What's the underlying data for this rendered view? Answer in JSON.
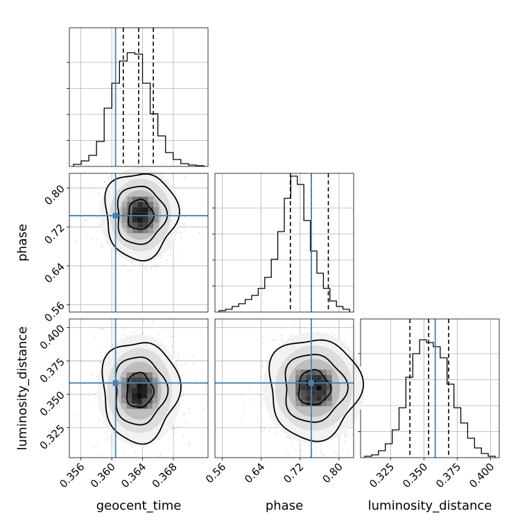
{
  "chart_data": {
    "type": "corner",
    "parameters": [
      {
        "key": "geocent_time",
        "label": "geocent_time",
        "range": [
          0.3545,
          0.3725
        ],
        "ticks": [
          "0.356",
          "0.360",
          "0.364",
          "0.368"
        ],
        "truth": 0.3605,
        "quantiles": [
          0.3615,
          0.3635,
          0.3654
        ],
        "histogram": [
          0.015,
          0.04,
          0.08,
          0.18,
          0.42,
          0.6,
          0.76,
          0.82,
          0.81,
          0.6,
          0.38,
          0.22,
          0.1,
          0.05,
          0.02,
          0.01,
          0.005
        ]
      },
      {
        "key": "phase",
        "label": "phase",
        "range": [
          0.545,
          0.83
        ],
        "ticks": [
          "0.56",
          "0.64",
          "0.72",
          "0.80"
        ],
        "truth": 0.743,
        "quantiles": [
          0.7,
          0.743,
          0.778
        ],
        "histogram": [
          0.01,
          0.02,
          0.04,
          0.06,
          0.09,
          0.12,
          0.17,
          0.25,
          0.38,
          0.58,
          0.82,
          0.98,
          0.92,
          0.66,
          0.44,
          0.28,
          0.17,
          0.08,
          0.04,
          0.02
        ]
      },
      {
        "key": "luminosity_distance",
        "label": "luminosity_distance",
        "range": [
          0.3025,
          0.4065
        ],
        "ticks": [
          "0.325",
          "0.350",
          "0.375",
          "0.400"
        ],
        "truth": 0.3585,
        "quantiles": [
          0.3395,
          0.3535,
          0.3685
        ],
        "histogram": [
          0.01,
          0.02,
          0.05,
          0.1,
          0.2,
          0.36,
          0.58,
          0.75,
          0.85,
          0.83,
          0.8,
          0.72,
          0.53,
          0.36,
          0.25,
          0.14,
          0.07,
          0.03,
          0.01
        ]
      }
    ],
    "pairs": [
      {
        "x": "geocent_time",
        "y": "phase",
        "peak": [
          0.3637,
          0.7445
        ],
        "spread": [
          0.0018,
          0.034
        ]
      },
      {
        "x": "geocent_time",
        "y": "luminosity_distance",
        "peak": [
          0.3636,
          0.3528
        ],
        "spread": [
          0.0019,
          0.0145
        ]
      },
      {
        "x": "phase",
        "y": "luminosity_distance",
        "peak": [
          0.748,
          0.3548
        ],
        "spread": [
          0.036,
          0.0145
        ]
      }
    ],
    "truth_color": "#4682b4",
    "grid": true
  },
  "axis_labels": {
    "geocent_time": "geocent_time",
    "phase": "phase",
    "luminosity_distance": "luminosity_distance"
  }
}
